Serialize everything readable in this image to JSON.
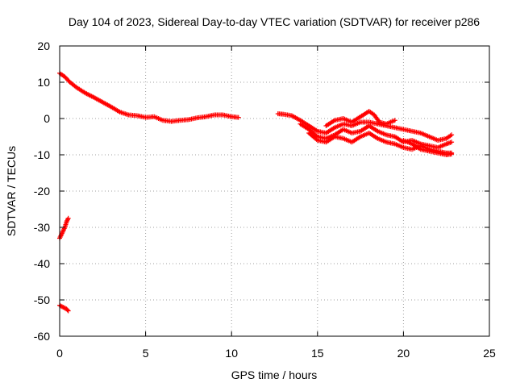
{
  "chart_data": {
    "type": "scatter",
    "title": "Day 104 of 2023, Sidereal Day-to-day VTEC variation (SDTVAR) for receiver p286",
    "xlabel": "GPS time / hours",
    "ylabel": "SDTVAR / TECUs",
    "xlim": [
      0,
      25
    ],
    "ylim": [
      -60,
      20
    ],
    "xticks": [
      0,
      5,
      10,
      15,
      20,
      25
    ],
    "yticks": [
      -60,
      -50,
      -40,
      -30,
      -20,
      -10,
      0,
      10,
      20
    ],
    "grid": true,
    "marker": "+",
    "color": "#ff0000",
    "series": [
      {
        "name": "SDTVAR",
        "segments": [
          [
            [
              0.0,
              12.5
            ],
            [
              0.3,
              11.5
            ],
            [
              0.6,
              10.0
            ],
            [
              1.0,
              8.5
            ],
            [
              1.5,
              7.0
            ],
            [
              2.0,
              5.8
            ],
            [
              2.5,
              4.5
            ],
            [
              3.0,
              3.2
            ],
            [
              3.5,
              1.8
            ],
            [
              4.0,
              1.0
            ],
            [
              4.5,
              0.8
            ],
            [
              5.0,
              0.3
            ],
            [
              5.5,
              0.5
            ],
            [
              6.0,
              -0.5
            ],
            [
              6.5,
              -0.8
            ],
            [
              7.0,
              -0.5
            ],
            [
              7.5,
              -0.3
            ],
            [
              8.0,
              0.2
            ],
            [
              8.5,
              0.5
            ],
            [
              9.0,
              1.0
            ],
            [
              9.5,
              1.0
            ],
            [
              10.0,
              0.5
            ],
            [
              10.4,
              0.3
            ]
          ],
          [
            [
              0.0,
              -33.0
            ],
            [
              0.1,
              -32.0
            ],
            [
              0.2,
              -31.0
            ],
            [
              0.3,
              -30.0
            ],
            [
              0.4,
              -28.5
            ],
            [
              0.5,
              -27.5
            ]
          ],
          [
            [
              0.0,
              -51.5
            ],
            [
              0.2,
              -52.0
            ],
            [
              0.4,
              -52.5
            ],
            [
              0.5,
              -53.0
            ]
          ],
          [
            [
              12.7,
              1.3
            ],
            [
              13.0,
              1.2
            ],
            [
              13.5,
              0.8
            ],
            [
              14.0,
              -0.5
            ],
            [
              14.5,
              -2.0
            ],
            [
              15.0,
              -3.5
            ],
            [
              15.5,
              -4.0
            ],
            [
              16.0,
              -2.5
            ],
            [
              16.5,
              -1.5
            ],
            [
              17.0,
              -2.0
            ],
            [
              17.5,
              -1.0
            ],
            [
              18.0,
              -1.0
            ],
            [
              18.5,
              -1.5
            ],
            [
              19.0,
              -2.0
            ],
            [
              19.5,
              -2.5
            ],
            [
              20.0,
              -3.0
            ],
            [
              20.5,
              -3.5
            ],
            [
              21.0,
              -4.0
            ],
            [
              21.5,
              -5.0
            ],
            [
              22.0,
              -6.0
            ],
            [
              22.5,
              -5.5
            ],
            [
              22.8,
              -4.5
            ]
          ],
          [
            [
              14.0,
              -1.5
            ],
            [
              14.5,
              -3.0
            ],
            [
              15.0,
              -5.0
            ],
            [
              15.5,
              -5.5
            ],
            [
              16.0,
              -4.5
            ],
            [
              16.5,
              -3.0
            ],
            [
              17.0,
              -4.0
            ],
            [
              17.5,
              -3.5
            ],
            [
              18.0,
              -2.0
            ],
            [
              18.5,
              -3.5
            ],
            [
              19.0,
              -4.5
            ],
            [
              19.5,
              -5.0
            ],
            [
              20.0,
              -6.5
            ],
            [
              20.5,
              -6.0
            ],
            [
              21.0,
              -7.0
            ],
            [
              21.5,
              -7.5
            ],
            [
              22.0,
              -8.0
            ],
            [
              22.5,
              -7.0
            ],
            [
              22.8,
              -6.5
            ]
          ],
          [
            [
              14.5,
              -4.0
            ],
            [
              15.0,
              -6.0
            ],
            [
              15.5,
              -6.5
            ],
            [
              16.0,
              -5.0
            ],
            [
              16.5,
              -5.5
            ],
            [
              17.0,
              -6.5
            ],
            [
              17.5,
              -5.0
            ],
            [
              18.0,
              -4.0
            ],
            [
              18.5,
              -5.5
            ],
            [
              19.0,
              -6.5
            ],
            [
              19.5,
              -7.0
            ],
            [
              20.0,
              -8.0
            ],
            [
              20.5,
              -8.5
            ],
            [
              21.0,
              -7.5
            ],
            [
              21.5,
              -8.5
            ],
            [
              22.0,
              -9.0
            ],
            [
              22.5,
              -9.5
            ],
            [
              22.8,
              -9.5
            ]
          ],
          [
            [
              15.5,
              -2.0
            ],
            [
              16.0,
              -0.5
            ],
            [
              16.5,
              0.0
            ],
            [
              17.0,
              -1.0
            ],
            [
              17.5,
              0.5
            ],
            [
              18.0,
              2.0
            ],
            [
              18.3,
              1.0
            ],
            [
              18.6,
              -1.0
            ],
            [
              19.0,
              -1.5
            ],
            [
              19.5,
              -0.5
            ]
          ],
          [
            [
              20.0,
              -6.0
            ],
            [
              20.5,
              -7.0
            ],
            [
              21.0,
              -8.5
            ],
            [
              21.5,
              -9.0
            ],
            [
              22.0,
              -9.5
            ],
            [
              22.5,
              -10.0
            ],
            [
              22.8,
              -9.8
            ]
          ]
        ]
      }
    ]
  }
}
